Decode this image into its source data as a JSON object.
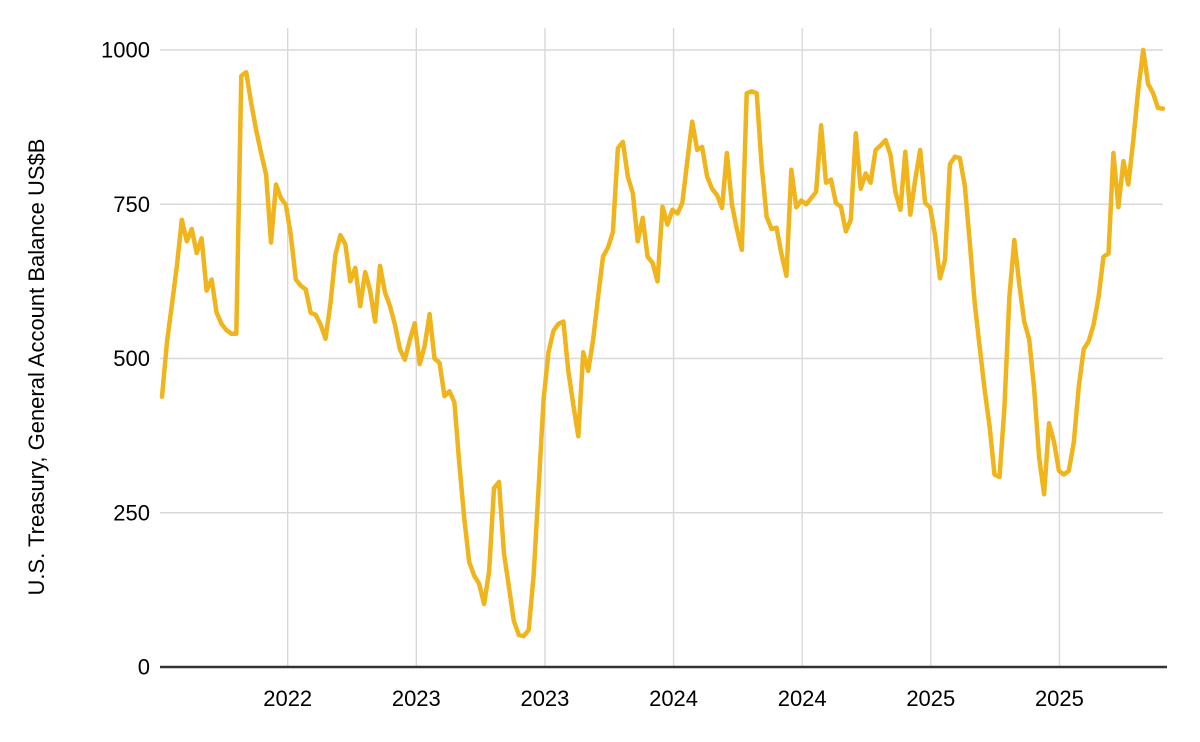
{
  "chart_data": {
    "type": "line",
    "title": "",
    "xlabel": "",
    "ylabel": "U.S. Treasury, General Account Balance US$B",
    "ylim": [
      0,
      1000
    ],
    "y_ticks": [
      0,
      250,
      500,
      750,
      1000
    ],
    "x_tick_labels": [
      "2022",
      "2023",
      "2023",
      "2024",
      "2024",
      "2025",
      "2025"
    ],
    "grid": true,
    "legend": false,
    "line_color": "#F0B41C",
    "values": [
      438,
      527,
      587,
      650,
      725,
      690,
      710,
      671,
      695,
      610,
      628,
      575,
      556,
      546,
      540,
      540,
      958,
      964,
      914,
      870,
      833,
      798,
      688,
      782,
      760,
      749,
      700,
      628,
      618,
      612,
      574,
      571,
      555,
      532,
      590,
      668,
      700,
      685,
      625,
      647,
      585,
      640,
      610,
      560,
      650,
      607,
      585,
      555,
      515,
      498,
      530,
      557,
      491,
      520,
      572,
      500,
      493,
      439,
      447,
      429,
      330,
      240,
      170,
      148,
      135,
      102,
      155,
      290,
      300,
      185,
      130,
      75,
      52,
      50,
      60,
      150,
      290,
      434,
      510,
      545,
      556,
      560,
      480,
      425,
      374,
      510,
      480,
      530,
      600,
      665,
      680,
      705,
      841,
      851,
      795,
      768,
      690,
      728,
      665,
      655,
      625,
      746,
      717,
      741,
      735,
      752,
      820,
      884,
      838,
      843,
      795,
      775,
      765,
      744,
      833,
      750,
      710,
      676,
      930,
      933,
      930,
      814,
      730,
      710,
      712,
      670,
      634,
      806,
      745,
      756,
      750,
      760,
      770,
      878,
      785,
      790,
      752,
      746,
      706,
      725,
      865,
      775,
      800,
      785,
      838,
      845,
      854,
      830,
      770,
      741,
      835,
      733,
      790,
      838,
      752,
      745,
      700,
      630,
      660,
      815,
      827,
      825,
      780,
      690,
      590,
      520,
      450,
      390,
      312,
      308,
      420,
      600,
      692,
      620,
      560,
      531,
      450,
      340,
      280,
      395,
      365,
      318,
      312,
      318,
      364,
      455,
      515,
      528,
      555,
      600,
      665,
      670,
      833,
      745,
      820,
      782,
      854,
      935,
      1000,
      945,
      930,
      906,
      905
    ]
  },
  "colors": {
    "line": "#F0B41C",
    "gridline": "#D9D9D9",
    "axis": "#333333",
    "text": "#000000",
    "background": "#FFFFFF"
  }
}
